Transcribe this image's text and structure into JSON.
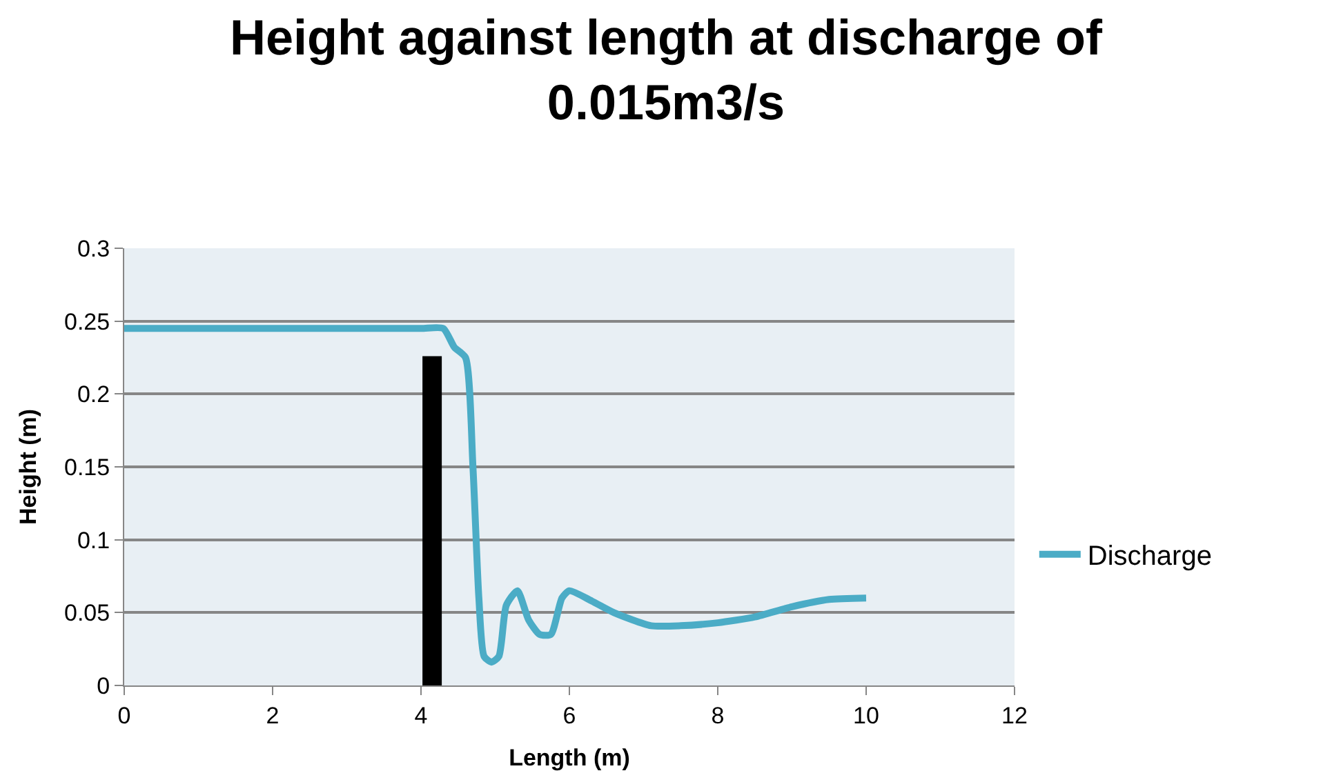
{
  "chart_data": {
    "type": "line",
    "title": "Height against length at discharge of 0.015m3/s",
    "xlabel": "Length (m)",
    "ylabel": "Height (m)",
    "series": [
      {
        "name": "Discharge",
        "color": "#4bacc6",
        "x": [
          0,
          1,
          2,
          3,
          4,
          4.3,
          4.45,
          4.6,
          4.7,
          4.78,
          4.85,
          4.95,
          5.05,
          5.15,
          5.3,
          5.45,
          5.6,
          5.75,
          5.9,
          6.0,
          6.3,
          6.6,
          7.1,
          7.5,
          8,
          8.5,
          9,
          9.5,
          10
        ],
        "values": [
          0.245,
          0.245,
          0.245,
          0.245,
          0.245,
          0.245,
          0.232,
          0.225,
          0.15,
          0.06,
          0.02,
          0.016,
          0.02,
          0.055,
          0.065,
          0.045,
          0.035,
          0.035,
          0.06,
          0.065,
          0.058,
          0.05,
          0.041,
          0.041,
          0.043,
          0.047,
          0.054,
          0.059,
          0.06
        ]
      },
      {
        "color": "#000000",
        "x": [
          4.15,
          4.15
        ],
        "values": [
          0,
          0.226
        ]
      }
    ],
    "xlim": [
      0,
      12
    ],
    "xticks": [
      0,
      2,
      4,
      6,
      8,
      10,
      12
    ],
    "ylim": [
      0,
      0.3
    ],
    "yticks": [
      0,
      0.05,
      0.1,
      0.15,
      0.2,
      0.25,
      0.3
    ],
    "grid": "y",
    "legend": "right",
    "marker": "none"
  }
}
